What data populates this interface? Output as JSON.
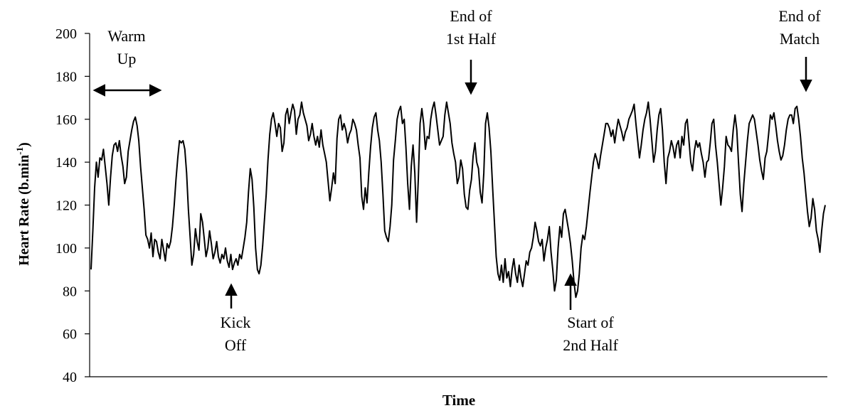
{
  "chart_data": {
    "type": "line",
    "title": "",
    "xlabel": "Time",
    "ylabel": "Heart Rate (b.min",
    "ylabel_sup": "-1",
    "ylabel_close": ")",
    "ylim": [
      40,
      200
    ],
    "yticks": [
      "40",
      "60",
      "80",
      "100",
      "120",
      "140",
      "160",
      "180",
      "200"
    ],
    "grid": false,
    "series": [
      {
        "values": [
          90,
          108,
          128,
          140,
          133,
          142,
          141,
          146,
          138,
          130,
          120,
          133,
          143,
          148,
          149,
          145,
          150,
          143,
          138,
          130,
          133,
          145,
          150,
          155,
          159,
          161,
          157,
          150,
          138,
          128,
          118,
          106,
          104,
          100,
          107,
          96,
          104,
          103,
          98,
          95,
          104,
          99,
          94,
          102,
          100,
          103,
          110,
          120,
          132,
          142,
          150,
          149,
          150,
          146,
          135,
          118,
          105,
          92,
          97,
          109,
          103,
          99,
          116,
          112,
          104,
          96,
          100,
          108,
          102,
          95,
          98,
          103,
          96,
          93,
          97,
          95,
          100,
          94,
          91,
          97,
          90,
          93,
          95,
          92,
          97,
          95,
          100,
          105,
          112,
          126,
          137,
          132,
          119,
          100,
          90,
          88,
          92,
          101,
          113,
          125,
          141,
          153,
          160,
          163,
          158,
          152,
          158,
          156,
          145,
          149,
          162,
          165,
          158,
          163,
          167,
          164,
          153,
          160,
          162,
          168,
          163,
          160,
          157,
          150,
          153,
          158,
          152,
          148,
          152,
          147,
          155,
          148,
          144,
          140,
          131,
          122,
          128,
          135,
          130,
          151,
          160,
          162,
          155,
          158,
          155,
          149,
          153,
          155,
          160,
          158,
          155,
          148,
          142,
          124,
          118,
          128,
          121,
          135,
          147,
          156,
          161,
          163,
          155,
          150,
          140,
          125,
          108,
          105,
          103,
          110,
          120,
          141,
          150,
          160,
          164,
          166,
          158,
          160,
          147,
          130,
          118,
          138,
          148,
          135,
          112,
          132,
          158,
          165,
          158,
          146,
          152,
          151,
          160,
          165,
          168,
          162,
          155,
          148,
          150,
          152,
          162,
          168,
          163,
          158,
          149,
          144,
          140,
          130,
          133,
          141,
          137,
          125,
          119,
          118,
          127,
          132,
          143,
          149,
          140,
          137,
          126,
          121,
          135,
          158,
          163,
          156,
          145,
          128,
          112,
          96,
          88,
          85,
          92,
          84,
          95,
          86,
          89,
          82,
          90,
          95,
          88,
          84,
          92,
          86,
          82,
          88,
          94,
          92,
          98,
          100,
          105,
          112,
          108,
          103,
          101,
          104,
          94,
          100,
          104,
          110,
          98,
          90,
          80,
          85,
          100,
          110,
          105,
          116,
          118,
          113,
          108,
          102,
          94,
          84,
          77,
          80,
          88,
          100,
          106,
          104,
          110,
          118,
          126,
          133,
          140,
          144,
          141,
          137,
          143,
          148,
          153,
          158,
          158,
          156,
          152,
          155,
          149,
          155,
          160,
          157,
          154,
          150,
          154,
          156,
          160,
          162,
          164,
          167,
          158,
          150,
          142,
          148,
          155,
          160,
          163,
          168,
          160,
          150,
          140,
          145,
          155,
          162,
          165,
          155,
          140,
          130,
          142,
          145,
          150,
          147,
          142,
          148,
          150,
          142,
          152,
          148,
          158,
          160,
          150,
          140,
          136,
          145,
          150,
          147,
          149,
          144,
          140,
          133,
          140,
          141,
          149,
          158,
          160,
          148,
          140,
          130,
          120,
          128,
          138,
          152,
          148,
          147,
          145,
          155,
          162,
          155,
          140,
          125,
          117,
          130,
          140,
          150,
          158,
          160,
          162,
          160,
          154,
          148,
          141,
          136,
          132,
          142,
          145,
          153,
          162,
          160,
          163,
          157,
          150,
          145,
          141,
          143,
          148,
          155,
          160,
          162,
          162,
          158,
          165,
          166,
          160,
          152,
          142,
          135,
          126,
          117,
          110,
          114,
          123,
          118,
          108,
          104,
          98,
          108,
          116,
          120
        ]
      }
    ],
    "annotations": [
      {
        "lines": [
          "Warm",
          "Up"
        ],
        "marker": "double-arrow"
      },
      {
        "lines": [
          "Kick",
          "Off"
        ],
        "marker": "arrow-up"
      },
      {
        "lines": [
          "End of",
          "1st Half"
        ],
        "marker": "arrow-down"
      },
      {
        "lines": [
          "Start of",
          "2nd Half"
        ],
        "marker": "arrow-up"
      },
      {
        "lines": [
          "End of",
          "Match"
        ],
        "marker": "arrow-down"
      }
    ]
  }
}
